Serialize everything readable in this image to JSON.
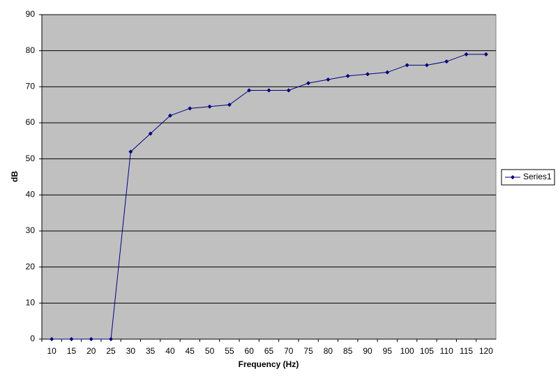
{
  "chart_data": {
    "type": "line",
    "xlabel": "Frequency (Hz)",
    "ylabel": "dB",
    "categories": [
      "10",
      "15",
      "20",
      "25",
      "30",
      "35",
      "40",
      "45",
      "50",
      "55",
      "60",
      "65",
      "70",
      "75",
      "80",
      "85",
      "90",
      "95",
      "100",
      "105",
      "110",
      "115",
      "120"
    ],
    "series": [
      {
        "name": "Series1",
        "color": "#000080",
        "values": [
          0,
          0,
          0,
          0,
          52,
          57,
          62,
          64,
          64.5,
          65,
          69,
          69,
          69,
          71,
          72,
          73,
          73.5,
          74,
          76,
          76,
          77,
          79,
          79
        ]
      }
    ],
    "ylim": [
      0,
      90
    ],
    "yticks": [
      0,
      10,
      20,
      30,
      40,
      50,
      60,
      70,
      80,
      90
    ],
    "grid": true,
    "legend": "right"
  }
}
